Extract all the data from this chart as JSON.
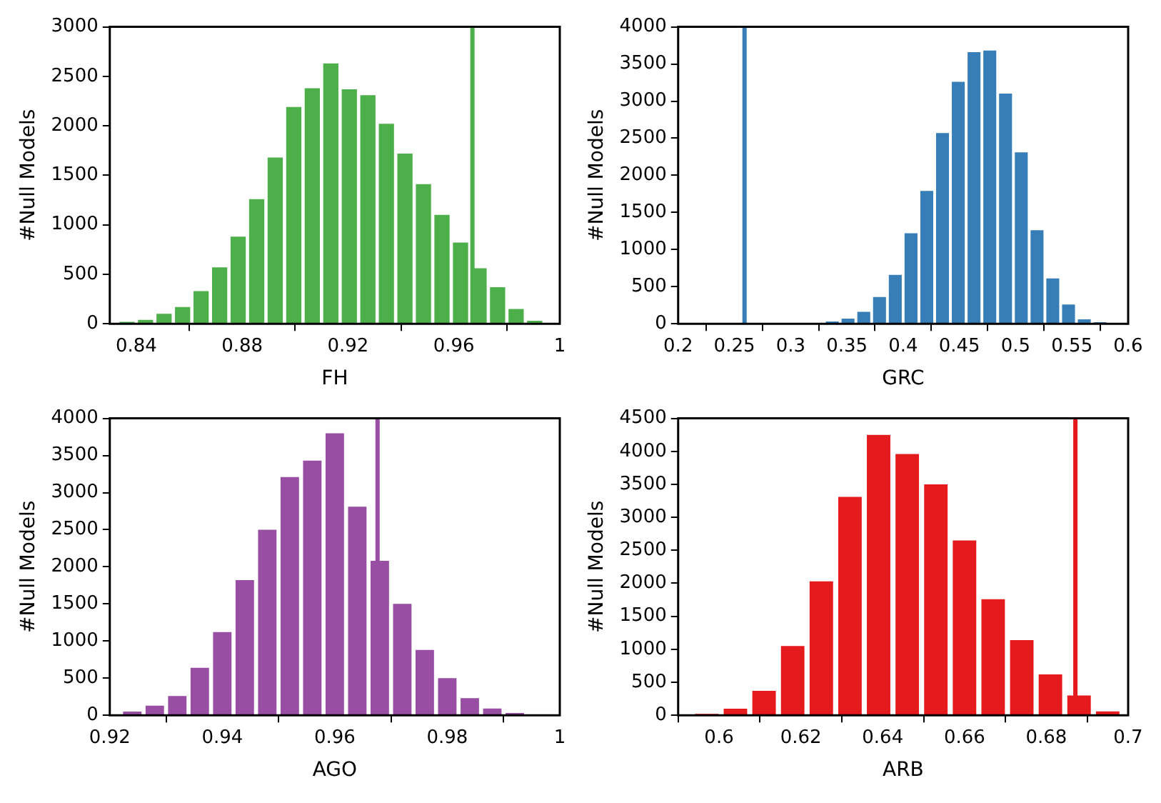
{
  "chart_data": [
    {
      "type": "histogram",
      "xlabel": "FH",
      "ylabel": "#Null Models",
      "color": "#4daf4a",
      "grid": false,
      "bins": [
        0.833,
        0.84,
        0.847,
        0.854,
        0.861,
        0.868,
        0.875,
        0.882,
        0.889,
        0.896,
        0.903,
        0.91,
        0.917,
        0.924,
        0.931,
        0.938,
        0.945,
        0.952,
        0.959,
        0.966,
        0.973,
        0.98,
        0.987,
        0.994
      ],
      "values": [
        20,
        40,
        100,
        170,
        330,
        570,
        880,
        1260,
        1680,
        2190,
        2380,
        2630,
        2370,
        2310,
        2020,
        1720,
        1410,
        1100,
        820,
        560,
        370,
        150,
        30
      ],
      "xlim": [
        0.83,
        1
      ],
      "xticks": [
        0.84,
        0.88,
        0.92,
        0.96,
        1
      ],
      "ylim": [
        0,
        3000
      ],
      "yticks": [
        0,
        500,
        1000,
        1500,
        2000,
        2500,
        3000
      ],
      "ref_lines": [
        {
          "axis": "x",
          "value": 0.967,
          "color": "#4daf4a"
        }
      ]
    },
    {
      "type": "histogram",
      "xlabel": "GRC",
      "ylabel": "#Null Models",
      "color": "#377eb8",
      "grid": false,
      "bins": [
        0.302,
        0.316,
        0.33,
        0.344,
        0.358,
        0.372,
        0.386,
        0.4,
        0.414,
        0.428,
        0.442,
        0.456,
        0.47,
        0.484,
        0.498,
        0.512,
        0.526,
        0.54,
        0.554,
        0.568,
        0.582,
        0.596
      ],
      "values": [
        10,
        10,
        30,
        70,
        160,
        360,
        660,
        1220,
        1790,
        2570,
        3260,
        3660,
        3680,
        3100,
        2310,
        1260,
        610,
        260,
        60,
        20,
        10
      ],
      "xlim": [
        0.2,
        0.6
      ],
      "xticks": [
        0.2,
        0.25,
        0.3,
        0.35,
        0.4,
        0.45,
        0.5,
        0.55,
        0.6
      ],
      "ylim": [
        0,
        4000
      ],
      "yticks": [
        0,
        500,
        1000,
        1500,
        2000,
        2500,
        3000,
        3500,
        4000
      ],
      "ref_lines": [
        {
          "axis": "x",
          "value": 0.259,
          "color": "#377eb8"
        }
      ]
    },
    {
      "type": "histogram",
      "xlabel": "AGO",
      "ylabel": "#Null Models",
      "color": "#984ea3",
      "grid": false,
      "bins": [
        0.922,
        0.926,
        0.93,
        0.934,
        0.938,
        0.942,
        0.946,
        0.95,
        0.954,
        0.958,
        0.962,
        0.966,
        0.97,
        0.974,
        0.978,
        0.982,
        0.986,
        0.99,
        0.994,
        0.998
      ],
      "values": [
        50,
        130,
        260,
        640,
        1120,
        1820,
        2500,
        3210,
        3430,
        3800,
        2810,
        2080,
        1500,
        880,
        500,
        230,
        90,
        30,
        10
      ],
      "xlim": [
        0.92,
        1
      ],
      "xticks": [
        0.92,
        0.94,
        0.96,
        0.98,
        1
      ],
      "ylim": [
        0,
        4000
      ],
      "yticks": [
        0,
        500,
        1000,
        1500,
        2000,
        2500,
        3000,
        3500,
        4000
      ],
      "ref_lines": [
        {
          "axis": "x",
          "value": 0.9676,
          "color": "#984ea3"
        }
      ]
    },
    {
      "type": "histogram",
      "xlabel": "ARB",
      "ylabel": "#Null Models",
      "color": "#e41a1c",
      "grid": false,
      "bins": [
        0.5935,
        0.6005,
        0.6075,
        0.6145,
        0.6215,
        0.6285,
        0.6355,
        0.6425,
        0.6495,
        0.6565,
        0.6635,
        0.6705,
        0.6775,
        0.6845,
        0.6915,
        0.6985
      ],
      "values": [
        20,
        100,
        370,
        1050,
        2030,
        3310,
        4250,
        3960,
        3500,
        2650,
        1760,
        1140,
        620,
        300,
        60
      ],
      "xlim": [
        0.59,
        0.7
      ],
      "xticks": [
        0.6,
        0.62,
        0.64,
        0.66,
        0.68,
        0.7
      ],
      "ylim": [
        0,
        4500
      ],
      "yticks": [
        0,
        500,
        1000,
        1500,
        2000,
        2500,
        3000,
        3500,
        4000,
        4500
      ],
      "ref_lines": [
        {
          "axis": "x",
          "value": 0.6871,
          "color": "#e41a1c"
        }
      ]
    }
  ]
}
